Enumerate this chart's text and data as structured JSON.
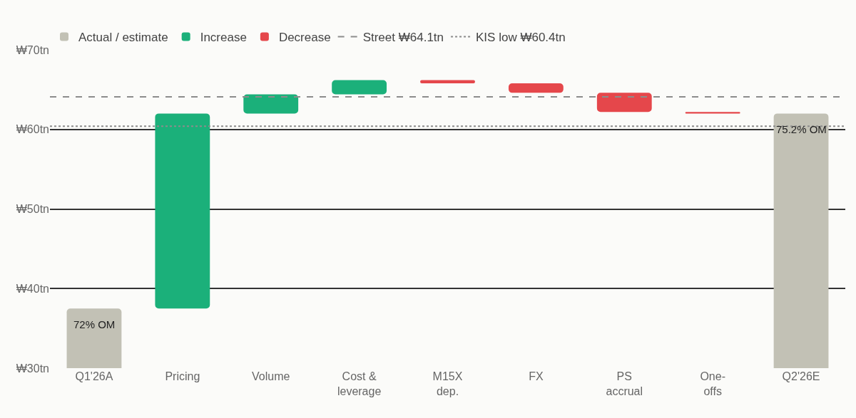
{
  "chart_data": {
    "type": "bar",
    "categories": [
      "Q1'26A",
      "Pricing",
      "Volume",
      "Cost &\nleverage",
      "M15X\ndep.",
      "FX",
      "PS\naccrual",
      "One-\noffs",
      "Q2'26E"
    ],
    "series": [
      {
        "name": "Actual / estimate",
        "color": "#c2c1b5",
        "values": [
          37.5,
          null,
          null,
          null,
          null,
          null,
          null,
          null,
          62.0
        ]
      },
      {
        "name": "Increase",
        "color": "#1bb07a",
        "values": [
          null,
          24.5,
          2.4,
          1.8,
          null,
          null,
          null,
          null,
          null
        ],
        "base": [
          null,
          37.5,
          62.0,
          64.4,
          null,
          null,
          null,
          null,
          null
        ]
      },
      {
        "name": "Decrease",
        "color": "#e5474b",
        "values": [
          null,
          null,
          null,
          null,
          -0.4,
          -1.2,
          -2.4,
          -0.2,
          null
        ],
        "base": [
          null,
          null,
          null,
          null,
          66.2,
          65.8,
          64.6,
          62.2,
          null
        ]
      }
    ],
    "ylim": [
      30,
      70
    ],
    "yticks": [
      {
        "value": 30,
        "label": "₩30tn"
      },
      {
        "value": 40,
        "label": "₩40tn"
      },
      {
        "value": 50,
        "label": "₩50tn"
      },
      {
        "value": 60,
        "label": "₩60tn"
      },
      {
        "value": 70,
        "label": "₩70tn"
      }
    ],
    "ref_lines": [
      {
        "axis": "y",
        "value": 64.1,
        "label": "Street ₩64.1tn",
        "color": "#8c8c8c",
        "line_style": "dashed"
      },
      {
        "axis": "y",
        "value": 60.4,
        "label": "KIS low ₩60.4tn",
        "color": "#8c8c8c",
        "line_style": "dotted"
      }
    ],
    "annotations": [
      "72% OM",
      "75.2% OM"
    ],
    "grid": "y",
    "legend": "top left"
  }
}
